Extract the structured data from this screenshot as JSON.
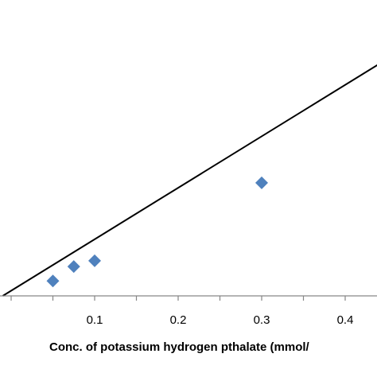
{
  "chart_data": {
    "type": "scatter",
    "title": "",
    "xlabel": "Conc. of potassium hydrogen pthalate (mmol/",
    "ylabel": "",
    "xlim": [
      -0.01,
      0.5
    ],
    "ylim": [
      0,
      1
    ],
    "x_ticks": [
      0.1,
      0.2,
      0.3,
      0.4
    ],
    "x_tick_labels": [
      "0.1",
      "0.2",
      "0.3",
      "0.4"
    ],
    "grid": false,
    "legend": "none",
    "series": [
      {
        "values": [
          {
            "x": 0.05,
            "y": 0.0567
          },
          {
            "x": 0.075,
            "y": 0.1117
          },
          {
            "x": 0.1,
            "y": 0.1337
          },
          {
            "x": 0.3,
            "y": 0.4307
          }
        ],
        "marker": "diamond",
        "color": "#4f81bd"
      }
    ],
    "trendline": {
      "from": {
        "x": -0.01,
        "y": 0
      },
      "to": {
        "x": 0.5,
        "y": 1.0
      },
      "color": "#000000"
    },
    "axis_color": "#868686"
  }
}
